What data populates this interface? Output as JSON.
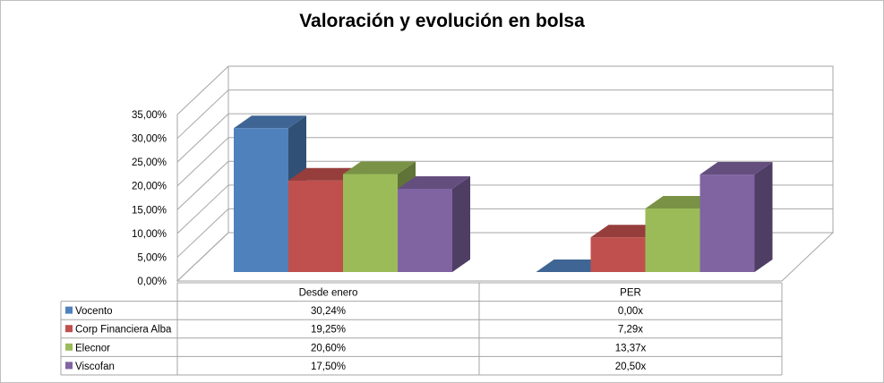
{
  "chart_data": {
    "type": "bar",
    "title": "Valoración y evolución en bolsa",
    "categories": [
      "Desde enero",
      "PER"
    ],
    "y_ticks": [
      "0,00%",
      "5,00%",
      "10,00%",
      "15,00%",
      "20,00%",
      "25,00%",
      "30,00%",
      "35,00%"
    ],
    "ylim": [
      0,
      35
    ],
    "grid": true,
    "legend_placement": "data-table",
    "series": [
      {
        "name": "Vocento",
        "color": "#4f81bd",
        "values": [
          30.24,
          0.0
        ],
        "labels": [
          "30,24%",
          "0,00x"
        ]
      },
      {
        "name": "Corp Financiera Alba",
        "color": "#c0504d",
        "values": [
          19.25,
          7.29
        ],
        "labels": [
          "19,25%",
          "7,29x"
        ]
      },
      {
        "name": "Elecnor",
        "color": "#9bbb59",
        "values": [
          20.6,
          13.37
        ],
        "labels": [
          "20,60%",
          "13,37x"
        ]
      },
      {
        "name": "Viscofan",
        "color": "#8064a2",
        "values": [
          17.5,
          20.5
        ],
        "labels": [
          "17,50%",
          "20,50x"
        ]
      }
    ]
  }
}
